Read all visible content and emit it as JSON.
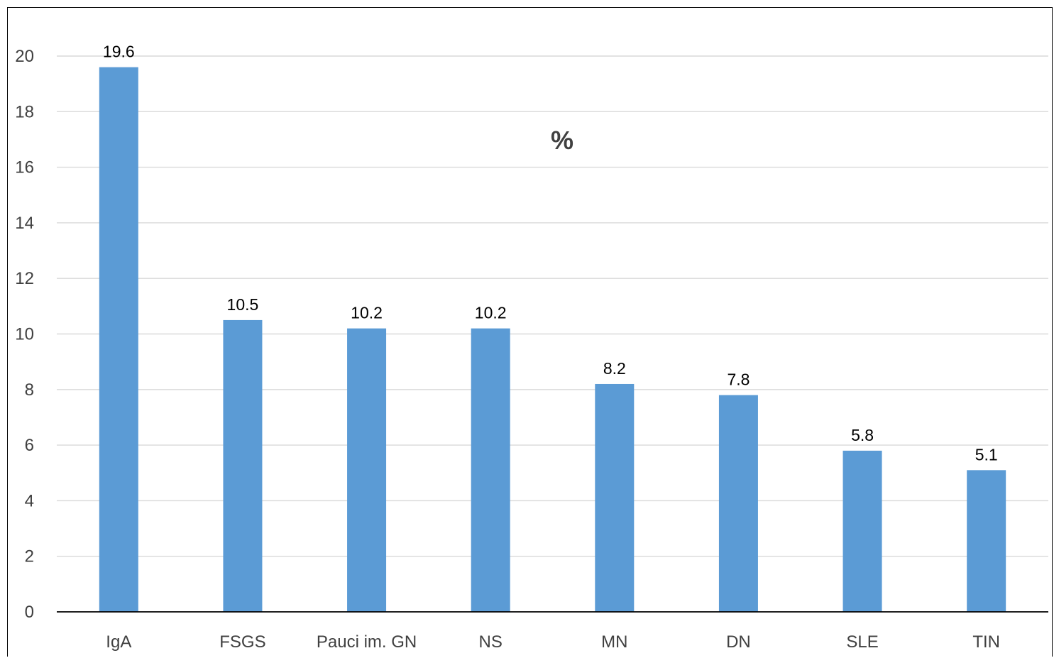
{
  "chart_data": {
    "type": "bar",
    "title": "%",
    "xlabel": "",
    "ylabel": "",
    "categories": [
      "IgA",
      "FSGS",
      "Pauci im. GN",
      "NS",
      "MN",
      "DN",
      "SLE",
      "TIN"
    ],
    "values": [
      19.6,
      10.5,
      10.2,
      10.2,
      8.2,
      7.8,
      5.8,
      5.1
    ],
    "data_labels": [
      "19.6",
      "10.5",
      "10.2",
      "10.2",
      "8.2",
      "7.8",
      "5.8",
      "5.1"
    ],
    "ylim": [
      0,
      20
    ],
    "yticks": [
      "0",
      "2",
      "4",
      "6",
      "8",
      "10",
      "12",
      "14",
      "16",
      "18",
      "20"
    ],
    "grid": true,
    "legend": "none",
    "bar_color": "#5b9bd5"
  }
}
